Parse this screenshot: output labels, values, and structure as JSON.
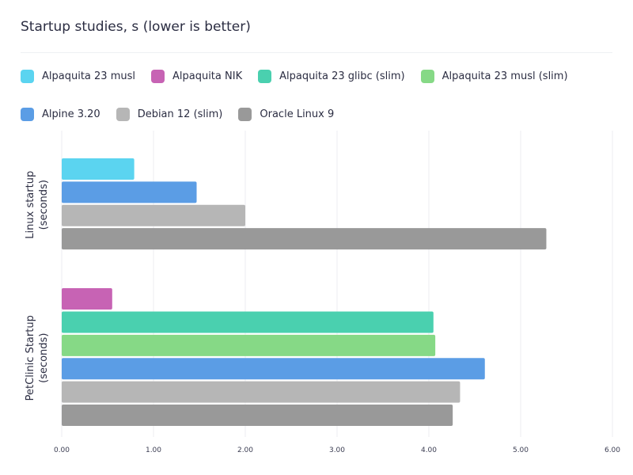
{
  "chart_data": {
    "type": "bar",
    "orientation": "horizontal",
    "title": "Startup studies, s (lower is better)",
    "categories": [
      "Linux startup (seconds)",
      "PetClinic Startup (seconds)"
    ],
    "category_lines": [
      [
        "Linux startup",
        "(seconds)"
      ],
      [
        "PetClinic Startup",
        "(seconds)"
      ]
    ],
    "xlim": [
      0,
      6
    ],
    "xticks": [
      "0.00",
      "1.00",
      "2.00",
      "3.00",
      "4.00",
      "5.00",
      "6.00"
    ],
    "grid": true,
    "legend_placement": "top",
    "series": [
      {
        "name": "Alpaquita 23 musl",
        "color": "#5bd4f0",
        "values": [
          0.79,
          null
        ]
      },
      {
        "name": "Alpaquita NIK",
        "color": "#c763b4",
        "values": [
          null,
          0.55
        ]
      },
      {
        "name": "Alpaquita 23 glibc (slim)",
        "color": "#4ad0af",
        "values": [
          null,
          4.05
        ]
      },
      {
        "name": "Alpaquita 23 musl (slim)",
        "color": "#86d986",
        "values": [
          null,
          4.07
        ]
      },
      {
        "name": "Alpine 3.20",
        "color": "#5b9de5",
        "values": [
          1.47,
          4.61
        ]
      },
      {
        "name": "Debian 12 (slim)",
        "color": "#b6b6b6",
        "values": [
          2.0,
          4.34
        ]
      },
      {
        "name": "Oracle Linux 9",
        "color": "#999999",
        "values": [
          5.28,
          4.26
        ]
      }
    ]
  }
}
